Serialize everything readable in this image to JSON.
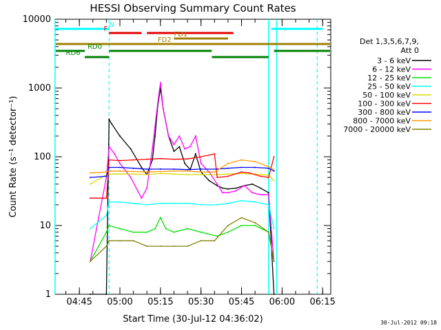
{
  "chart_data": {
    "type": "line",
    "title": "HESSI Observing Summary Count Rates",
    "xlabel": "Start Time (30-Jul-12 04:36:02)",
    "ylabel": "Count Rate (s⁻¹ detector⁻¹)",
    "yscale": "log",
    "ylim": [
      1,
      10000
    ],
    "xlim": [
      "04:36:02",
      "06:18:00"
    ],
    "x_ticks": [
      "04:45",
      "05:00",
      "05:15",
      "05:30",
      "05:45",
      "06:00",
      "06:15"
    ],
    "y_ticks": [
      "1",
      "10",
      "100",
      "1000",
      "10000"
    ],
    "legend_header": [
      "Det 1,3,5,6,7,9,",
      "Att 0"
    ],
    "legend_position": "right",
    "timestamp": "30-Jul-2012 09:18",
    "series": [
      {
        "name": "3 - 6 keV",
        "color": "#000000",
        "x": [
          "04:49",
          "04:55",
          "04:56",
          "04:57",
          "05:00",
          "05:04",
          "05:08",
          "05:10",
          "05:12",
          "05:13",
          "05:14",
          "05:15",
          "05:16",
          "05:18",
          "05:20",
          "05:22",
          "05:24",
          "05:26",
          "05:28",
          "05:30",
          "05:33",
          "05:36",
          "05:38",
          "05:40",
          "05:43",
          "05:46",
          "05:49",
          "05:52",
          "05:55",
          "05:57"
        ],
        "values": [
          1,
          1,
          350,
          300,
          200,
          130,
          70,
          55,
          90,
          200,
          550,
          1000,
          500,
          200,
          120,
          140,
          80,
          65,
          110,
          60,
          45,
          38,
          35,
          34,
          35,
          38,
          40,
          35,
          30,
          1
        ]
      },
      {
        "name": "6 - 12 keV",
        "color": "#ff00ff",
        "x": [
          "04:49",
          "04:55",
          "04:56",
          "04:58",
          "05:00",
          "05:04",
          "05:08",
          "05:10",
          "05:12",
          "05:14",
          "05:15",
          "05:16",
          "05:18",
          "05:20",
          "05:22",
          "05:24",
          "05:26",
          "05:28",
          "05:30",
          "05:33",
          "05:36",
          "05:38",
          "05:40",
          "05:43",
          "05:46",
          "05:49",
          "05:52",
          "05:55",
          "05:57"
        ],
        "values": [
          3,
          50,
          140,
          110,
          80,
          50,
          25,
          35,
          130,
          600,
          1200,
          500,
          200,
          150,
          200,
          130,
          140,
          200,
          80,
          60,
          40,
          30,
          30,
          32,
          38,
          30,
          28,
          28,
          3
        ]
      },
      {
        "name": "12 - 25 keV",
        "color": "#00e000",
        "x": [
          "04:49",
          "04:55",
          "04:56",
          "05:00",
          "05:05",
          "05:10",
          "05:13",
          "05:15",
          "05:17",
          "05:20",
          "05:25",
          "05:30",
          "05:36",
          "05:40",
          "05:45",
          "05:50",
          "05:55",
          "05:57"
        ],
        "values": [
          3,
          8,
          10,
          9,
          8,
          8,
          9,
          13,
          9,
          8,
          9,
          8,
          7,
          8,
          10,
          10,
          8,
          3
        ]
      },
      {
        "name": "25 - 50 keV",
        "color": "#00ffff",
        "x": [
          "04:49",
          "04:55",
          "04:56",
          "05:00",
          "05:05",
          "05:10",
          "05:15",
          "05:20",
          "05:25",
          "05:30",
          "05:36",
          "05:40",
          "05:45",
          "05:50",
          "05:55",
          "05:57"
        ],
        "values": [
          9,
          14,
          22,
          22,
          21,
          20,
          21,
          21,
          21,
          20,
          20,
          21,
          23,
          22,
          20,
          9
        ]
      },
      {
        "name": "50 - 100 keV",
        "color": "#d8d800",
        "x": [
          "04:49",
          "04:55",
          "04:56",
          "05:00",
          "05:05",
          "05:10",
          "05:15",
          "05:20",
          "05:25",
          "05:30",
          "05:36",
          "05:40",
          "05:45",
          "05:50",
          "05:55",
          "05:57"
        ],
        "values": [
          40,
          55,
          56,
          56,
          56,
          55,
          57,
          56,
          55,
          55,
          55,
          56,
          57,
          56,
          54,
          45
        ]
      },
      {
        "name": "100 - 300 keV",
        "color": "#ff0000",
        "x": [
          "04:49",
          "04:55",
          "04:56",
          "05:00",
          "05:05",
          "05:10",
          "05:15",
          "05:20",
          "05:25",
          "05:30",
          "05:35",
          "05:36",
          "05:40",
          "05:45",
          "05:48",
          "05:52",
          "05:55",
          "05:57"
        ],
        "values": [
          25,
          25,
          90,
          88,
          90,
          92,
          94,
          92,
          93,
          100,
          110,
          50,
          52,
          60,
          58,
          52,
          50,
          100
        ]
      },
      {
        "name": "300 - 800 keV",
        "color": "#0000ff",
        "x": [
          "04:49",
          "04:55",
          "04:56",
          "05:00",
          "05:05",
          "05:10",
          "05:15",
          "05:20",
          "05:25",
          "05:30",
          "05:36",
          "05:40",
          "05:45",
          "05:50",
          "05:55",
          "05:57"
        ],
        "values": [
          50,
          52,
          70,
          70,
          68,
          66,
          66,
          66,
          65,
          66,
          66,
          68,
          70,
          70,
          68,
          62
        ]
      },
      {
        "name": "800 - 7000 keV",
        "color": "#ff9900",
        "x": [
          "04:49",
          "04:55",
          "04:56",
          "05:00",
          "05:05",
          "05:10",
          "05:15",
          "05:20",
          "05:25",
          "05:30",
          "05:35",
          "05:40",
          "05:45",
          "05:50",
          "05:55",
          "05:57"
        ],
        "values": [
          58,
          60,
          62,
          62,
          61,
          60,
          61,
          62,
          62,
          60,
          60,
          80,
          90,
          85,
          72,
          65
        ]
      },
      {
        "name": "7000 - 20000 keV",
        "color": "#808000",
        "x": [
          "04:49",
          "04:55",
          "04:56",
          "05:00",
          "05:05",
          "05:10",
          "05:15",
          "05:20",
          "05:25",
          "05:30",
          "05:35",
          "05:40",
          "05:45",
          "05:50",
          "05:55",
          "05:57"
        ],
        "values": [
          3,
          5,
          6,
          6,
          6,
          5,
          5,
          5,
          5,
          6,
          6,
          10,
          13,
          11,
          8,
          3
        ]
      }
    ],
    "state_bars": [
      {
        "label": "N",
        "color": "#00ffff",
        "segments": [
          [
            "04:36",
            "04:56"
          ],
          [
            "05:56",
            "06:15"
          ]
        ],
        "label_at": "04:56"
      },
      {
        "label": "F",
        "color": "#e00000",
        "segments": [
          [
            "04:56",
            "05:08"
          ],
          [
            "05:10",
            "05:42"
          ]
        ],
        "label_at": "04:54"
      },
      {
        "label": "FD1",
        "color": "#a08000",
        "segments": [
          [
            "05:20",
            "05:40"
          ]
        ],
        "label_at": "05:20"
      },
      {
        "label": "FD2",
        "color": "#a08000",
        "segments": [
          [
            "04:36",
            "06:18"
          ]
        ],
        "label_at": "05:14"
      },
      {
        "label": "RD0",
        "color": "#008000",
        "segments": [
          [
            "04:36",
            "04:47"
          ],
          [
            "04:56",
            "05:34"
          ],
          [
            "05:57",
            "06:18"
          ]
        ],
        "label_at": "04:48"
      },
      {
        "label": "RD6",
        "color": "#008000",
        "segments": [
          [
            "04:47",
            "04:56"
          ],
          [
            "05:34",
            "05:55"
          ]
        ],
        "label_at": "04:40"
      }
    ],
    "vlines": {
      "solid": [
        "04:36",
        "05:55",
        "05:58"
      ],
      "dashed": [
        "04:56",
        "06:13"
      ],
      "color": "#00ffff"
    },
    "grid": false
  }
}
